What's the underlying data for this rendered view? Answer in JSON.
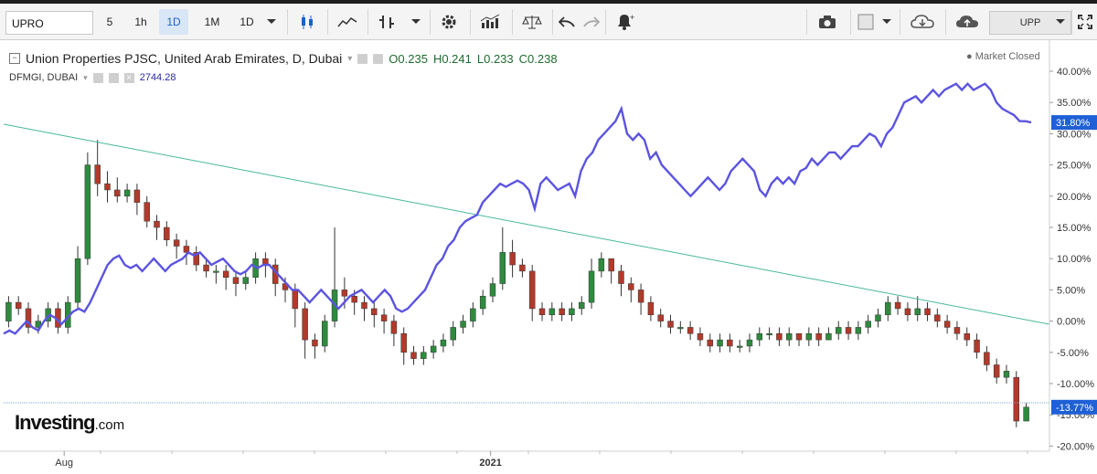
{
  "toolbar": {
    "symbol": "UPRO",
    "intervals": [
      "5",
      "1h",
      "1D",
      "1M",
      "1D"
    ],
    "active_interval_index": 2,
    "upp_label": "UPP",
    "icons": [
      "candles-icon",
      "line-chart-icon",
      "bar-type-icon",
      "chevron-down-icon",
      "gear-icon",
      "indicators-icon",
      "balance-icon",
      "undo-icon",
      "redo-icon",
      "alert-icon",
      "camera-icon",
      "color-box-icon",
      "cloud-download-icon",
      "cloud-upload-icon",
      "fullscreen-icon"
    ]
  },
  "legend": {
    "main_title": "Union Properties PJSC, United Arab Emirates, D, Dubai",
    "open": "O0.235",
    "high": "H0.241",
    "low": "L0.233",
    "close": "C0.238",
    "compare_symbol": "DFMGI, DUBAI",
    "compare_value": "2744.28"
  },
  "market_status": "Market Closed",
  "logo": {
    "main": "Investing",
    "suffix": ".com"
  },
  "colors": {
    "up": "#2e8b3e",
    "down": "#b23a2b",
    "compare_line": "#5b54e0",
    "trendline": "#48b89a",
    "hline": "#7aa6d6",
    "label_bg": "#1e60d6"
  },
  "chart_data": {
    "type": "candlestick-with-overlay-line",
    "y_unit": "%",
    "y_ticks": [
      "40.00%",
      "35.00%",
      "30.00%",
      "25.00%",
      "20.00%",
      "15.00%",
      "10.00%",
      "5.00%",
      "0.00%",
      "-5.00%",
      "-10.00%",
      "-15.00%",
      "-20.00%"
    ],
    "ylim": [
      -20,
      40
    ],
    "x_labels": [
      {
        "label": "Aug",
        "x": 0.05
      },
      {
        "label": "2021",
        "x": 0.465
      }
    ],
    "last_labels": {
      "compare": "31.80%",
      "main": "-13.77%"
    },
    "compare_series": [
      -2,
      -1.5,
      -2,
      -1,
      0,
      -1,
      -1.5,
      0,
      1,
      0.5,
      -0.5,
      0.5,
      1.5,
      2,
      1.5,
      3,
      5,
      7,
      9,
      10,
      10.5,
      9,
      8.5,
      9,
      8,
      9,
      10,
      9,
      8,
      9,
      9.5,
      10,
      11,
      10.5,
      11,
      10,
      9,
      9.5,
      10,
      9,
      8,
      7.5,
      8,
      9,
      8.5,
      9,
      9,
      8,
      7,
      6,
      5,
      5,
      4,
      3,
      4,
      5,
      4,
      3,
      2,
      3,
      4,
      4.5,
      5,
      4,
      3,
      4,
      5,
      4,
      2,
      1.5,
      2,
      3,
      4,
      5,
      7,
      9,
      10,
      12,
      13,
      15,
      16,
      16.5,
      17,
      19,
      20,
      21,
      22,
      21.5,
      22,
      22.5,
      22,
      21,
      18,
      22,
      23,
      22,
      21,
      21.5,
      22,
      20,
      24,
      26,
      27,
      29,
      30,
      31,
      32,
      34,
      30,
      29,
      30,
      29,
      26,
      27,
      25,
      24,
      23,
      22,
      21,
      20,
      21,
      22,
      23,
      22,
      21,
      22,
      24,
      25,
      26,
      25,
      24,
      21,
      20,
      22,
      23,
      22,
      23,
      22,
      24,
      24.5,
      26,
      25,
      26,
      27,
      27,
      26,
      27,
      28,
      28,
      29,
      30,
      29.5,
      28,
      30,
      31,
      33,
      35,
      35.5,
      36,
      35,
      36,
      37,
      36,
      37,
      37.5,
      38,
      37,
      38,
      37,
      37.5,
      38,
      37,
      35,
      34,
      33.5,
      33,
      32,
      32,
      31.8
    ],
    "main_candles": [
      [
        0,
        3,
        -1,
        4
      ],
      [
        3,
        2,
        1,
        4
      ],
      [
        2,
        -1,
        -2,
        3
      ],
      [
        -1,
        0,
        -2,
        1
      ],
      [
        0,
        2,
        -1,
        3
      ],
      [
        2,
        -1,
        -2,
        3
      ],
      [
        -1,
        3,
        -2,
        4
      ],
      [
        3,
        10,
        2,
        12
      ],
      [
        10,
        25,
        9,
        27
      ],
      [
        25,
        22,
        20,
        29
      ],
      [
        22,
        21,
        19,
        24
      ],
      [
        21,
        20,
        19,
        23
      ],
      [
        20,
        21,
        19,
        22
      ],
      [
        21,
        19,
        17,
        22
      ],
      [
        19,
        16,
        15,
        20
      ],
      [
        16,
        15,
        13,
        17
      ],
      [
        15,
        13,
        12,
        16
      ],
      [
        13,
        12,
        10,
        14
      ],
      [
        12,
        11,
        9,
        13
      ],
      [
        11,
        9,
        8,
        12
      ],
      [
        9,
        8,
        7,
        10
      ],
      [
        8,
        8,
        6,
        9
      ],
      [
        8,
        7,
        5,
        9
      ],
      [
        7,
        6,
        4,
        8
      ],
      [
        6,
        7,
        5,
        8
      ],
      [
        7,
        10,
        6,
        11
      ],
      [
        10,
        9,
        7,
        11
      ],
      [
        9,
        6,
        4,
        10
      ],
      [
        6,
        5,
        3,
        7
      ],
      [
        5,
        2,
        -1,
        6
      ],
      [
        2,
        -3,
        -6,
        3
      ],
      [
        -3,
        -4,
        -6,
        -2
      ],
      [
        -4,
        0,
        -5,
        1
      ],
      [
        0,
        5,
        -1,
        15
      ],
      [
        5,
        4,
        2,
        7
      ],
      [
        4,
        3,
        1,
        5
      ],
      [
        3,
        2,
        0,
        4
      ],
      [
        2,
        1,
        -1,
        3
      ],
      [
        1,
        0,
        -2,
        2
      ],
      [
        0,
        -2,
        -4,
        1
      ],
      [
        -2,
        -5,
        -7,
        -1
      ],
      [
        -5,
        -6,
        -7,
        -4
      ],
      [
        -6,
        -5,
        -7,
        -4
      ],
      [
        -5,
        -4,
        -6,
        -3
      ],
      [
        -4,
        -3,
        -5,
        -2
      ],
      [
        -3,
        -1,
        -4,
        0
      ],
      [
        -1,
        0,
        -2,
        1
      ],
      [
        0,
        2,
        -1,
        3
      ],
      [
        2,
        4,
        1,
        5
      ],
      [
        4,
        6,
        3,
        7
      ],
      [
        6,
        11,
        5,
        15
      ],
      [
        11,
        9,
        7,
        13
      ],
      [
        9,
        8,
        7,
        10
      ],
      [
        8,
        2,
        0,
        9
      ],
      [
        2,
        1,
        0,
        3
      ],
      [
        1,
        2,
        0,
        3
      ],
      [
        2,
        1,
        0,
        3
      ],
      [
        1,
        2,
        0,
        3
      ],
      [
        2,
        3,
        1,
        4
      ],
      [
        3,
        8,
        2,
        10
      ],
      [
        8,
        10,
        7,
        11
      ],
      [
        10,
        8,
        6,
        10
      ],
      [
        8,
        6,
        4,
        9
      ],
      [
        6,
        5,
        3,
        7
      ],
      [
        5,
        3,
        1,
        6
      ],
      [
        3,
        1,
        0,
        4
      ],
      [
        1,
        0,
        -1,
        2
      ],
      [
        0,
        -1,
        -2,
        1
      ],
      [
        -1,
        -1,
        -2,
        0
      ],
      [
        -1,
        -2,
        -3,
        0
      ],
      [
        -2,
        -3,
        -4,
        -1
      ],
      [
        -3,
        -4,
        -5,
        -2
      ],
      [
        -4,
        -3,
        -5,
        -2
      ],
      [
        -3,
        -4,
        -5,
        -2
      ],
      [
        -4,
        -4,
        -5,
        -3
      ],
      [
        -4,
        -3,
        -5,
        -2
      ],
      [
        -3,
        -2,
        -4,
        -1
      ],
      [
        -2,
        -2,
        -3,
        -1
      ],
      [
        -2,
        -3,
        -4,
        -1
      ],
      [
        -3,
        -2,
        -4,
        -1
      ],
      [
        -2,
        -3,
        -4,
        -2
      ],
      [
        -3,
        -2,
        -4,
        -1
      ],
      [
        -2,
        -3,
        -4,
        -1
      ],
      [
        -3,
        -2,
        -3,
        -1
      ],
      [
        -2,
        -1,
        -3,
        0
      ],
      [
        -1,
        -2,
        -3,
        0
      ],
      [
        -2,
        -1,
        -3,
        0
      ],
      [
        -1,
        0,
        -2,
        1
      ],
      [
        0,
        1,
        -1,
        2
      ],
      [
        1,
        3,
        0,
        4
      ],
      [
        3,
        2,
        1,
        4
      ],
      [
        2,
        1,
        0,
        3
      ],
      [
        1,
        2,
        0,
        4
      ],
      [
        2,
        1,
        0,
        3
      ],
      [
        1,
        0,
        -1,
        2
      ],
      [
        0,
        -1,
        -2,
        1
      ],
      [
        -1,
        -2,
        -3,
        0
      ],
      [
        -2,
        -3,
        -4,
        -1
      ],
      [
        -3,
        -5,
        -6,
        -2
      ],
      [
        -5,
        -7,
        -8,
        -4
      ],
      [
        -7,
        -9,
        -10,
        -6
      ],
      [
        -9,
        -8,
        -10,
        -7
      ],
      [
        -9,
        -16,
        -17,
        -8
      ],
      [
        -16,
        -13.77,
        -16,
        -13
      ]
    ]
  }
}
